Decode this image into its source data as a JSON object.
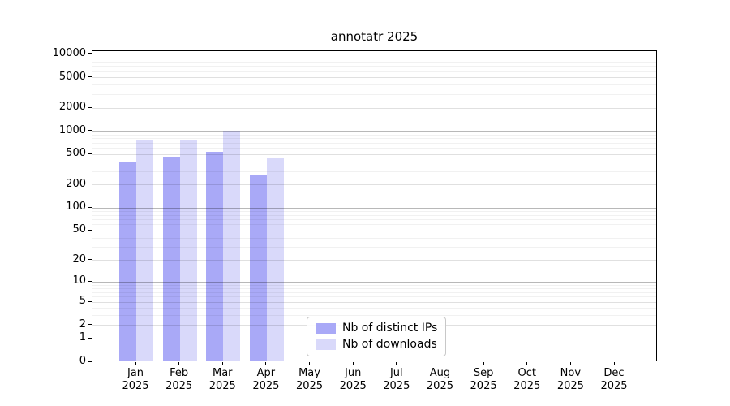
{
  "chart_data": {
    "type": "bar",
    "title": "annotatr 2025",
    "scale": "log1p",
    "categories": [
      "Jan 2025",
      "Feb 2025",
      "Mar 2025",
      "Apr 2025",
      "May 2025",
      "Jun 2025",
      "Jul 2025",
      "Aug 2025",
      "Sep 2025",
      "Oct 2025",
      "Nov 2025",
      "Dec 2025"
    ],
    "series": [
      {
        "name": "Nb of distinct IPs",
        "color": "#a9a9f7",
        "values": [
          400,
          470,
          540,
          270,
          null,
          null,
          null,
          null,
          null,
          null,
          null,
          null
        ]
      },
      {
        "name": "Nb of downloads",
        "color": "#d9d9fa",
        "values": [
          780,
          780,
          1020,
          445,
          null,
          null,
          null,
          null,
          null,
          null,
          null,
          null
        ]
      }
    ],
    "y_ticks": [
      0,
      1,
      2,
      5,
      10,
      20,
      50,
      100,
      200,
      500,
      1000,
      2000,
      5000,
      10000
    ],
    "ylim": [
      0,
      11000
    ],
    "xlabel": "",
    "ylabel": "",
    "grid": true,
    "legend_position": "lower center"
  }
}
